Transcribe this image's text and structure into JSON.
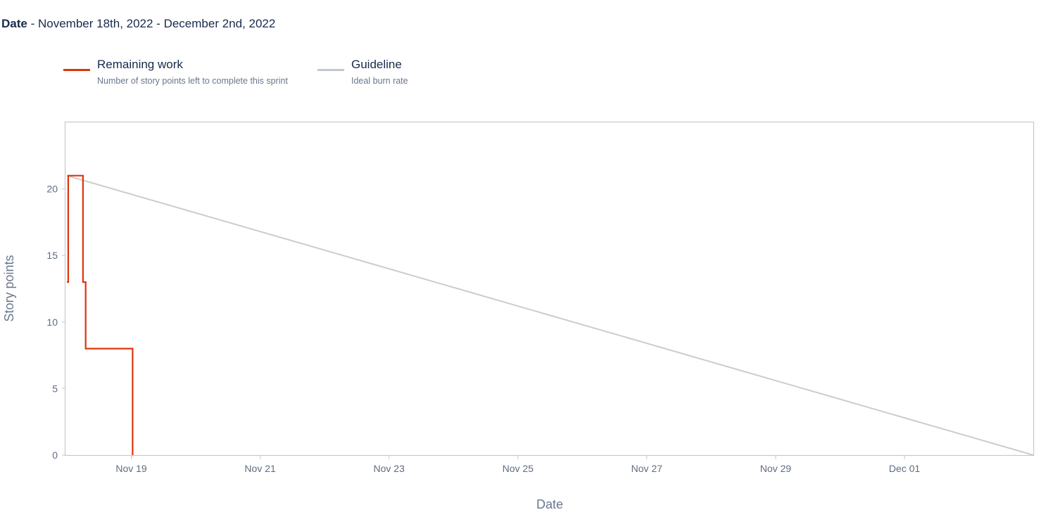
{
  "header": {
    "label": "Date",
    "separator": " - ",
    "range": "November 18th, 2022 - December 2nd, 2022"
  },
  "legend": [
    {
      "title": "Remaining work",
      "description": "Number of story points left to complete this sprint",
      "color": "#de350b"
    },
    {
      "title": "Guideline",
      "description": "Ideal burn rate",
      "color": "#c1c7d0"
    }
  ],
  "chart_data": {
    "type": "line",
    "xlabel": "Date",
    "ylabel": "Story points",
    "xlim": [
      "2022-11-18T00:00",
      "2022-12-02T23:59"
    ],
    "ylim": [
      0,
      25
    ],
    "x_ticks": [
      {
        "date": "2022-11-19",
        "label": "Nov 19"
      },
      {
        "date": "2022-11-21",
        "label": "Nov 21"
      },
      {
        "date": "2022-11-23",
        "label": "Nov 23"
      },
      {
        "date": "2022-11-25",
        "label": "Nov 25"
      },
      {
        "date": "2022-11-27",
        "label": "Nov 27"
      },
      {
        "date": "2022-11-29",
        "label": "Nov 29"
      },
      {
        "date": "2022-12-01",
        "label": "Dec 01"
      }
    ],
    "y_ticks": [
      0,
      5,
      10,
      15,
      20
    ],
    "series": [
      {
        "name": "Remaining work",
        "color": "#de350b",
        "step": true,
        "points": [
          {
            "x": "2022-11-18T00:00",
            "y": 13
          },
          {
            "x": "2022-11-18T00:30",
            "y": 21
          },
          {
            "x": "2022-11-18T06:00",
            "y": 13
          },
          {
            "x": "2022-11-18T07:00",
            "y": 8
          },
          {
            "x": "2022-11-19T00:30",
            "y": 0
          }
        ]
      },
      {
        "name": "Guideline",
        "color": "#cccccc",
        "step": false,
        "points": [
          {
            "x": "2022-11-18T00:00",
            "y": 21
          },
          {
            "x": "2022-12-02T23:59",
            "y": 0
          }
        ]
      }
    ]
  }
}
